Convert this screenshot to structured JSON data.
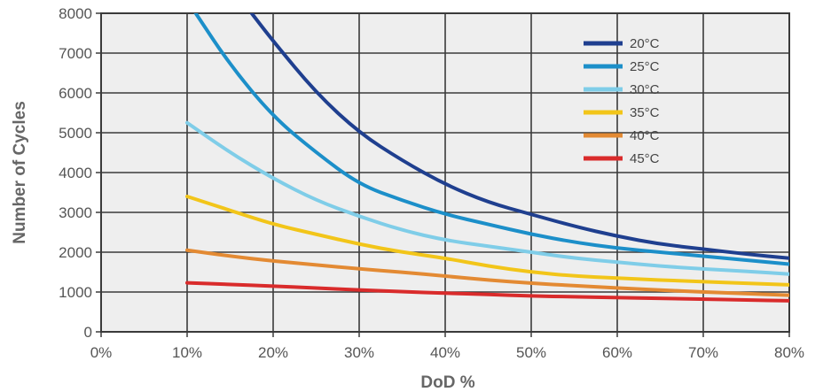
{
  "chart_data": {
    "type": "line",
    "title": "",
    "xlabel": "DoD %",
    "ylabel": "Number of Cycles",
    "xlim": [
      0,
      80
    ],
    "ylim": [
      0,
      8000
    ],
    "x_ticks": [
      {
        "value": 0,
        "label": "0%"
      },
      {
        "value": 10,
        "label": "10%"
      },
      {
        "value": 20,
        "label": "20%"
      },
      {
        "value": 30,
        "label": "30%"
      },
      {
        "value": 40,
        "label": "40%"
      },
      {
        "value": 50,
        "label": "50%"
      },
      {
        "value": 60,
        "label": "60%"
      },
      {
        "value": 70,
        "label": "70%"
      },
      {
        "value": 80,
        "label": "80%"
      }
    ],
    "y_ticks": [
      {
        "value": 0,
        "label": "0"
      },
      {
        "value": 1000,
        "label": "1000"
      },
      {
        "value": 2000,
        "label": "2000"
      },
      {
        "value": 3000,
        "label": "3000"
      },
      {
        "value": 4000,
        "label": "4000"
      },
      {
        "value": 5000,
        "label": "5000"
      },
      {
        "value": 6000,
        "label": "6000"
      },
      {
        "value": 7000,
        "label": "7000"
      },
      {
        "value": 8000,
        "label": "8000"
      }
    ],
    "grid": true,
    "legend_position": "top-right",
    "series": [
      {
        "name": "20°C",
        "color": "#1f3f8f",
        "points": [
          [
            17.5,
            8000
          ],
          [
            20,
            7300
          ],
          [
            25,
            6000
          ],
          [
            30,
            5000
          ],
          [
            35,
            4300
          ],
          [
            40,
            3700
          ],
          [
            45,
            3250
          ],
          [
            50,
            2950
          ],
          [
            55,
            2650
          ],
          [
            60,
            2400
          ],
          [
            65,
            2200
          ],
          [
            70,
            2080
          ],
          [
            75,
            1950
          ],
          [
            80,
            1850
          ]
        ]
      },
      {
        "name": "25°C",
        "color": "#1c8fc9",
        "points": [
          [
            11,
            8000
          ],
          [
            15,
            6700
          ],
          [
            20,
            5400
          ],
          [
            25,
            4500
          ],
          [
            30,
            3700
          ],
          [
            35,
            3300
          ],
          [
            40,
            2950
          ],
          [
            45,
            2700
          ],
          [
            50,
            2450
          ],
          [
            55,
            2250
          ],
          [
            60,
            2100
          ],
          [
            65,
            2000
          ],
          [
            70,
            1900
          ],
          [
            75,
            1800
          ],
          [
            80,
            1700
          ]
        ]
      },
      {
        "name": "30°C",
        "color": "#7fcde8",
        "points": [
          [
            10,
            5250
          ],
          [
            15,
            4500
          ],
          [
            20,
            3850
          ],
          [
            25,
            3300
          ],
          [
            30,
            2900
          ],
          [
            35,
            2550
          ],
          [
            40,
            2300
          ],
          [
            45,
            2150
          ],
          [
            50,
            2000
          ],
          [
            55,
            1850
          ],
          [
            60,
            1750
          ],
          [
            65,
            1650
          ],
          [
            70,
            1580
          ],
          [
            75,
            1520
          ],
          [
            80,
            1450
          ]
        ]
      },
      {
        "name": "35°C",
        "color": "#f2c519",
        "points": [
          [
            10,
            3400
          ],
          [
            15,
            3050
          ],
          [
            20,
            2700
          ],
          [
            25,
            2450
          ],
          [
            30,
            2200
          ],
          [
            35,
            2000
          ],
          [
            40,
            1850
          ],
          [
            45,
            1650
          ],
          [
            50,
            1500
          ],
          [
            55,
            1400
          ],
          [
            60,
            1350
          ],
          [
            65,
            1300
          ],
          [
            70,
            1260
          ],
          [
            75,
            1220
          ],
          [
            80,
            1180
          ]
        ]
      },
      {
        "name": "40°C",
        "color": "#e38a33",
        "points": [
          [
            10,
            2050
          ],
          [
            15,
            1900
          ],
          [
            20,
            1780
          ],
          [
            25,
            1680
          ],
          [
            30,
            1580
          ],
          [
            35,
            1500
          ],
          [
            40,
            1400
          ],
          [
            45,
            1300
          ],
          [
            50,
            1220
          ],
          [
            55,
            1160
          ],
          [
            60,
            1100
          ],
          [
            65,
            1050
          ],
          [
            70,
            1000
          ],
          [
            75,
            960
          ],
          [
            80,
            920
          ]
        ]
      },
      {
        "name": "45°C",
        "color": "#d92b2b",
        "points": [
          [
            10,
            1230
          ],
          [
            15,
            1190
          ],
          [
            20,
            1150
          ],
          [
            25,
            1100
          ],
          [
            30,
            1050
          ],
          [
            35,
            1010
          ],
          [
            40,
            970
          ],
          [
            45,
            940
          ],
          [
            50,
            900
          ],
          [
            55,
            880
          ],
          [
            60,
            860
          ],
          [
            65,
            840
          ],
          [
            70,
            820
          ],
          [
            75,
            800
          ],
          [
            80,
            780
          ]
        ]
      }
    ]
  }
}
